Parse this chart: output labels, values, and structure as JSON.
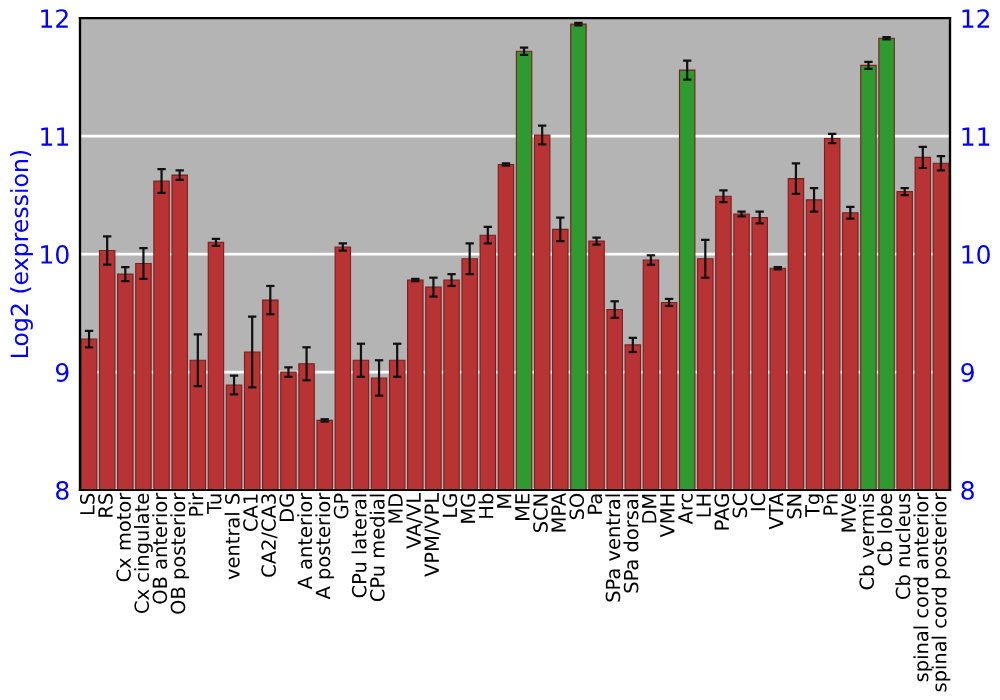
{
  "chart_data": {
    "type": "bar",
    "ylabel": "Log2 (expression)",
    "categories": [
      "LS",
      "RS",
      "Cx motor",
      "Cx cingulate",
      "OB anterior",
      "OB posterior",
      "Pir",
      "Tu",
      "ventral S",
      "CA1",
      "CA2/CA3",
      "DG",
      "A anterior",
      "A posterior",
      "GP",
      "CPu lateral",
      "CPu medial",
      "MD",
      "VA/VL",
      "VPM/VPL",
      "LG",
      "MG",
      "Hb",
      "M",
      "ME",
      "SCN",
      "MPA",
      "SO",
      "Pa",
      "SPa ventral",
      "SPa dorsal",
      "DM",
      "VMH",
      "Arc",
      "LH",
      "PAG",
      "SC",
      "IC",
      "VTA",
      "SN",
      "Tg",
      "Pn",
      "MVe",
      "Cb vermis",
      "Cb lobe",
      "Cb nucleus",
      "spinal cord anterior",
      "spinal cord posterior"
    ],
    "values": [
      9.28,
      10.03,
      9.83,
      9.92,
      10.62,
      10.67,
      9.1,
      10.1,
      8.89,
      9.17,
      9.61,
      9.0,
      9.07,
      8.59,
      10.06,
      9.1,
      8.95,
      9.1,
      9.78,
      9.72,
      9.78,
      9.96,
      10.16,
      10.76,
      11.72,
      11.01,
      10.21,
      11.95,
      10.11,
      9.53,
      9.23,
      9.95,
      9.59,
      11.56,
      9.96,
      10.49,
      10.34,
      10.31,
      9.88,
      10.64,
      10.46,
      10.98,
      10.35,
      11.6,
      11.83,
      10.53,
      10.82,
      10.77
    ],
    "errors": [
      0.07,
      0.12,
      0.06,
      0.13,
      0.1,
      0.04,
      0.22,
      0.03,
      0.08,
      0.3,
      0.12,
      0.04,
      0.14,
      0.01,
      0.03,
      0.14,
      0.15,
      0.14,
      0.01,
      0.08,
      0.05,
      0.13,
      0.07,
      0.01,
      0.03,
      0.08,
      0.1,
      0.01,
      0.03,
      0.07,
      0.06,
      0.04,
      0.03,
      0.08,
      0.16,
      0.05,
      0.02,
      0.05,
      0.01,
      0.13,
      0.1,
      0.04,
      0.05,
      0.03,
      0.01,
      0.03,
      0.09,
      0.06
    ],
    "colors": [
      "#b83434",
      "#b83434",
      "#b83434",
      "#b83434",
      "#b83434",
      "#b83434",
      "#b83434",
      "#b83434",
      "#b83434",
      "#b83434",
      "#b83434",
      "#b83434",
      "#b83434",
      "#b83434",
      "#b83434",
      "#b83434",
      "#b83434",
      "#b83434",
      "#b83434",
      "#b83434",
      "#b83434",
      "#b83434",
      "#b83434",
      "#b83434",
      "#2f9a2f",
      "#b83434",
      "#b83434",
      "#2f9a2f",
      "#b83434",
      "#b83434",
      "#b83434",
      "#b83434",
      "#b83434",
      "#2f9a2f",
      "#b83434",
      "#b83434",
      "#b83434",
      "#b83434",
      "#b83434",
      "#b83434",
      "#b83434",
      "#b83434",
      "#b83434",
      "#2f9a2f",
      "#2f9a2f",
      "#b83434",
      "#b83434",
      "#b83434"
    ],
    "ylim": [
      8,
      12
    ],
    "yticks": [
      8,
      9,
      10,
      11,
      12
    ],
    "y2lim": [
      8,
      12
    ],
    "y2ticks": [
      8,
      9,
      10,
      11,
      12
    ],
    "grid": "y",
    "legend": false
  }
}
